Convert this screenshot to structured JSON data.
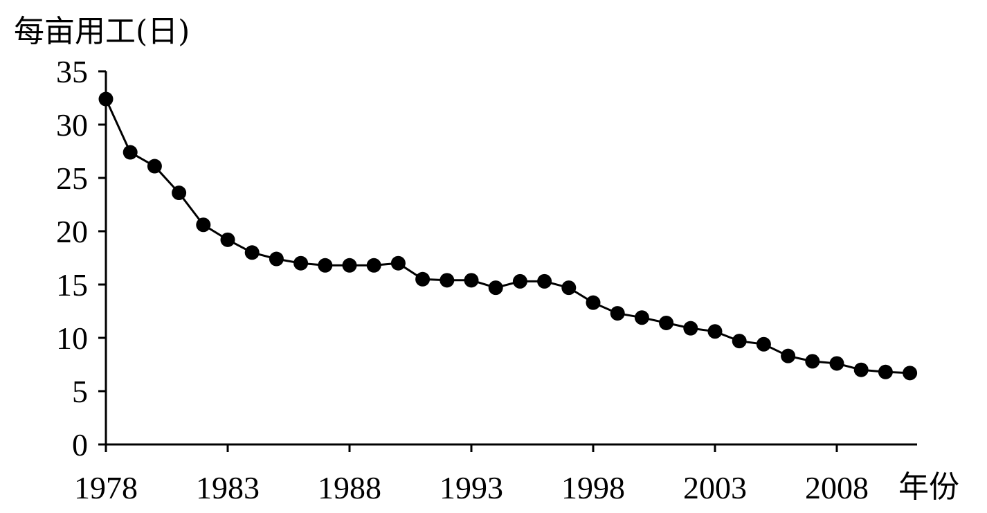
{
  "chart_data": {
    "type": "line",
    "title": "",
    "ylabel": "每亩用工(日)",
    "xlabel": "年份",
    "ylim": [
      0,
      35
    ],
    "yticks": [
      0,
      5,
      10,
      15,
      20,
      25,
      30,
      35
    ],
    "xlim": [
      1978,
      2011
    ],
    "xticks": [
      1978,
      1983,
      1988,
      1993,
      1998,
      2003,
      2008
    ],
    "grid": false,
    "legend": "none",
    "series": [
      {
        "x": [
          1978,
          1979,
          1980,
          1981,
          1982,
          1983,
          1984,
          1985,
          1986,
          1987,
          1988,
          1989,
          1990,
          1991,
          1992,
          1993,
          1994,
          1995,
          1996,
          1997,
          1998,
          1999,
          2000,
          2001,
          2002,
          2003,
          2004,
          2005,
          2006,
          2007,
          2008,
          2009,
          2010,
          2011
        ],
        "values": [
          32.4,
          27.4,
          26.1,
          23.6,
          20.6,
          19.2,
          18.0,
          17.4,
          17.0,
          16.8,
          16.8,
          16.8,
          17.0,
          15.5,
          15.4,
          15.4,
          14.7,
          15.3,
          15.3,
          14.7,
          13.3,
          12.3,
          11.9,
          11.4,
          10.9,
          10.6,
          9.7,
          9.4,
          8.3,
          7.8,
          7.6,
          7.0,
          6.8,
          6.7
        ]
      }
    ]
  }
}
